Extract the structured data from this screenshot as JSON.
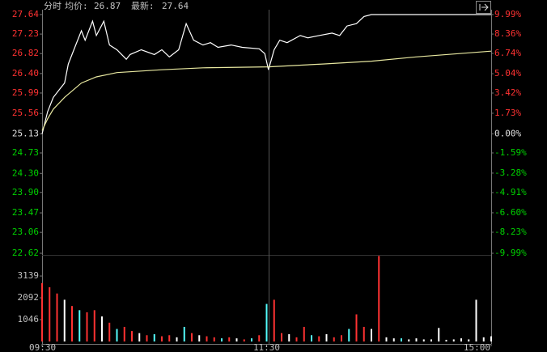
{
  "chart_data": {
    "type": "intraday",
    "header": {
      "mode": "分时",
      "avg_label": "均价:",
      "avg_value": "26.87",
      "latest_label": "最新:",
      "latest_value": "27.64"
    },
    "xlim": [
      0,
      240
    ],
    "xticks": [
      {
        "value": 0,
        "label": "09:30"
      },
      {
        "value": 120,
        "label": "11:30"
      },
      {
        "value": 240,
        "label": "15:00"
      }
    ],
    "ylim": [
      22.62,
      27.64
    ],
    "yticks": [
      27.64,
      27.23,
      26.82,
      26.4,
      25.99,
      25.56,
      25.13,
      24.73,
      24.3,
      23.9,
      23.47,
      23.06,
      22.62
    ],
    "ytick_labels": [
      "27.64",
      "27.23",
      "26.82",
      "26.40",
      "25.99",
      "25.56",
      "25.13",
      "24.73",
      "24.30",
      "23.90",
      "23.47",
      "23.06",
      "22.62"
    ],
    "y2lim": [
      -9.99,
      9.99
    ],
    "y2ticks": [
      {
        "value": 9.99,
        "label": "9.99%"
      },
      {
        "value": 8.36,
        "label": "8.36%"
      },
      {
        "value": 6.74,
        "label": "6.74%"
      },
      {
        "value": 5.04,
        "label": "5.04%"
      },
      {
        "value": 3.42,
        "label": "3.42%"
      },
      {
        "value": 1.73,
        "label": "1.73%"
      },
      {
        "value": 0,
        "label": "0.00%"
      },
      {
        "value": -1.59,
        "label": "-1.59%"
      },
      {
        "value": -3.28,
        "label": "-3.28%"
      },
      {
        "value": -4.91,
        "label": "-4.91%"
      },
      {
        "value": -6.6,
        "label": "-6.60%"
      },
      {
        "value": -8.23,
        "label": "-8.23%"
      },
      {
        "value": -9.99,
        "label": "-9.99%"
      }
    ],
    "series": [
      {
        "name": "price",
        "color": "#ffffff",
        "x": [
          0,
          3,
          6,
          10,
          12,
          14,
          18,
          21,
          23,
          27,
          29,
          33,
          36,
          40,
          45,
          47,
          53,
          60,
          64,
          68,
          73,
          77,
          81,
          86,
          90,
          94,
          101,
          107,
          116,
          119,
          121,
          124,
          127,
          131,
          138,
          142,
          148,
          155,
          159,
          163,
          168,
          172,
          176,
          240
        ],
        "values": [
          25.13,
          25.6,
          25.9,
          26.1,
          26.2,
          26.6,
          27.0,
          27.3,
          27.1,
          27.5,
          27.2,
          27.5,
          27.0,
          26.9,
          26.7,
          26.8,
          26.9,
          26.8,
          26.9,
          26.75,
          26.9,
          27.45,
          27.1,
          27.0,
          27.05,
          26.95,
          27.0,
          26.95,
          26.92,
          26.82,
          26.48,
          26.9,
          27.1,
          27.05,
          27.2,
          27.15,
          27.2,
          27.25,
          27.2,
          27.4,
          27.45,
          27.6,
          27.64,
          27.64
        ]
      },
      {
        "name": "average",
        "color": "#e8e8a0",
        "x": [
          0,
          3,
          6,
          12,
          21,
          29,
          40,
          64,
          86,
          121,
          150,
          176,
          200,
          240
        ],
        "values": [
          25.2,
          25.45,
          25.65,
          25.9,
          26.2,
          26.33,
          26.42,
          26.48,
          26.52,
          26.54,
          26.6,
          26.66,
          26.75,
          26.87
        ]
      }
    ],
    "volume": {
      "ylim": [
        0,
        4150
      ],
      "yticks": [
        3139,
        2092,
        1046
      ],
      "x": [
        0,
        4,
        8,
        12,
        16,
        20,
        24,
        28,
        32,
        36,
        40,
        44,
        48,
        52,
        56,
        60,
        64,
        68,
        72,
        76,
        80,
        84,
        88,
        92,
        96,
        100,
        104,
        108,
        112,
        116,
        120,
        124,
        128,
        132,
        136,
        140,
        144,
        148,
        152,
        156,
        160,
        164,
        168,
        172,
        176,
        180,
        184,
        188,
        192,
        196,
        200,
        204,
        208,
        212,
        216,
        220,
        224,
        228,
        232,
        236,
        240
      ],
      "values": [
        2800,
        2600,
        2300,
        2000,
        1700,
        1500,
        1400,
        1500,
        1200,
        900,
        600,
        700,
        500,
        400,
        300,
        350,
        250,
        300,
        200,
        700,
        400,
        300,
        250,
        200,
        150,
        200,
        150,
        100,
        150,
        300,
        1800,
        2000,
        400,
        350,
        200,
        700,
        300,
        250,
        350,
        200,
        300,
        600,
        1300,
        700,
        600,
        4100,
        200,
        150,
        150,
        100,
        150,
        100,
        100,
        650,
        80,
        100,
        150,
        100,
        2000,
        200,
        250
      ],
      "colors": [
        "#ff3232",
        "#ff3232",
        "#ff3232",
        "#ffffff",
        "#ff3232",
        "#54fcfc",
        "#ff3232",
        "#ff3232",
        "#ffffff",
        "#ff3232",
        "#54fcfc",
        "#ff3232",
        "#ff3232",
        "#ffffff",
        "#ff3232",
        "#54fcfc",
        "#ff3232",
        "#ff3232",
        "#ffffff",
        "#54fcfc",
        "#ff3232",
        "#ffffff",
        "#ff3232",
        "#ff3232",
        "#54fcfc",
        "#ff3232",
        "#ffffff",
        "#ff3232",
        "#54fcfc",
        "#ff3232",
        "#54fcfc",
        "#ff3232",
        "#ff3232",
        "#ffffff",
        "#ff3232",
        "#ff3232",
        "#54fcfc",
        "#ff3232",
        "#ffffff",
        "#ff3232",
        "#ff3232",
        "#54fcfc",
        "#ff3232",
        "#ff3232",
        "#ffffff",
        "#ff3232",
        "#ffffff",
        "#ffffff",
        "#54fcfc",
        "#ffffff",
        "#ffffff",
        "#ffffff",
        "#ffffff",
        "#ffffff",
        "#ffffff",
        "#ffffff",
        "#ffffff",
        "#ffffff",
        "#ffffff",
        "#ffffff",
        "#ffffff"
      ]
    }
  }
}
